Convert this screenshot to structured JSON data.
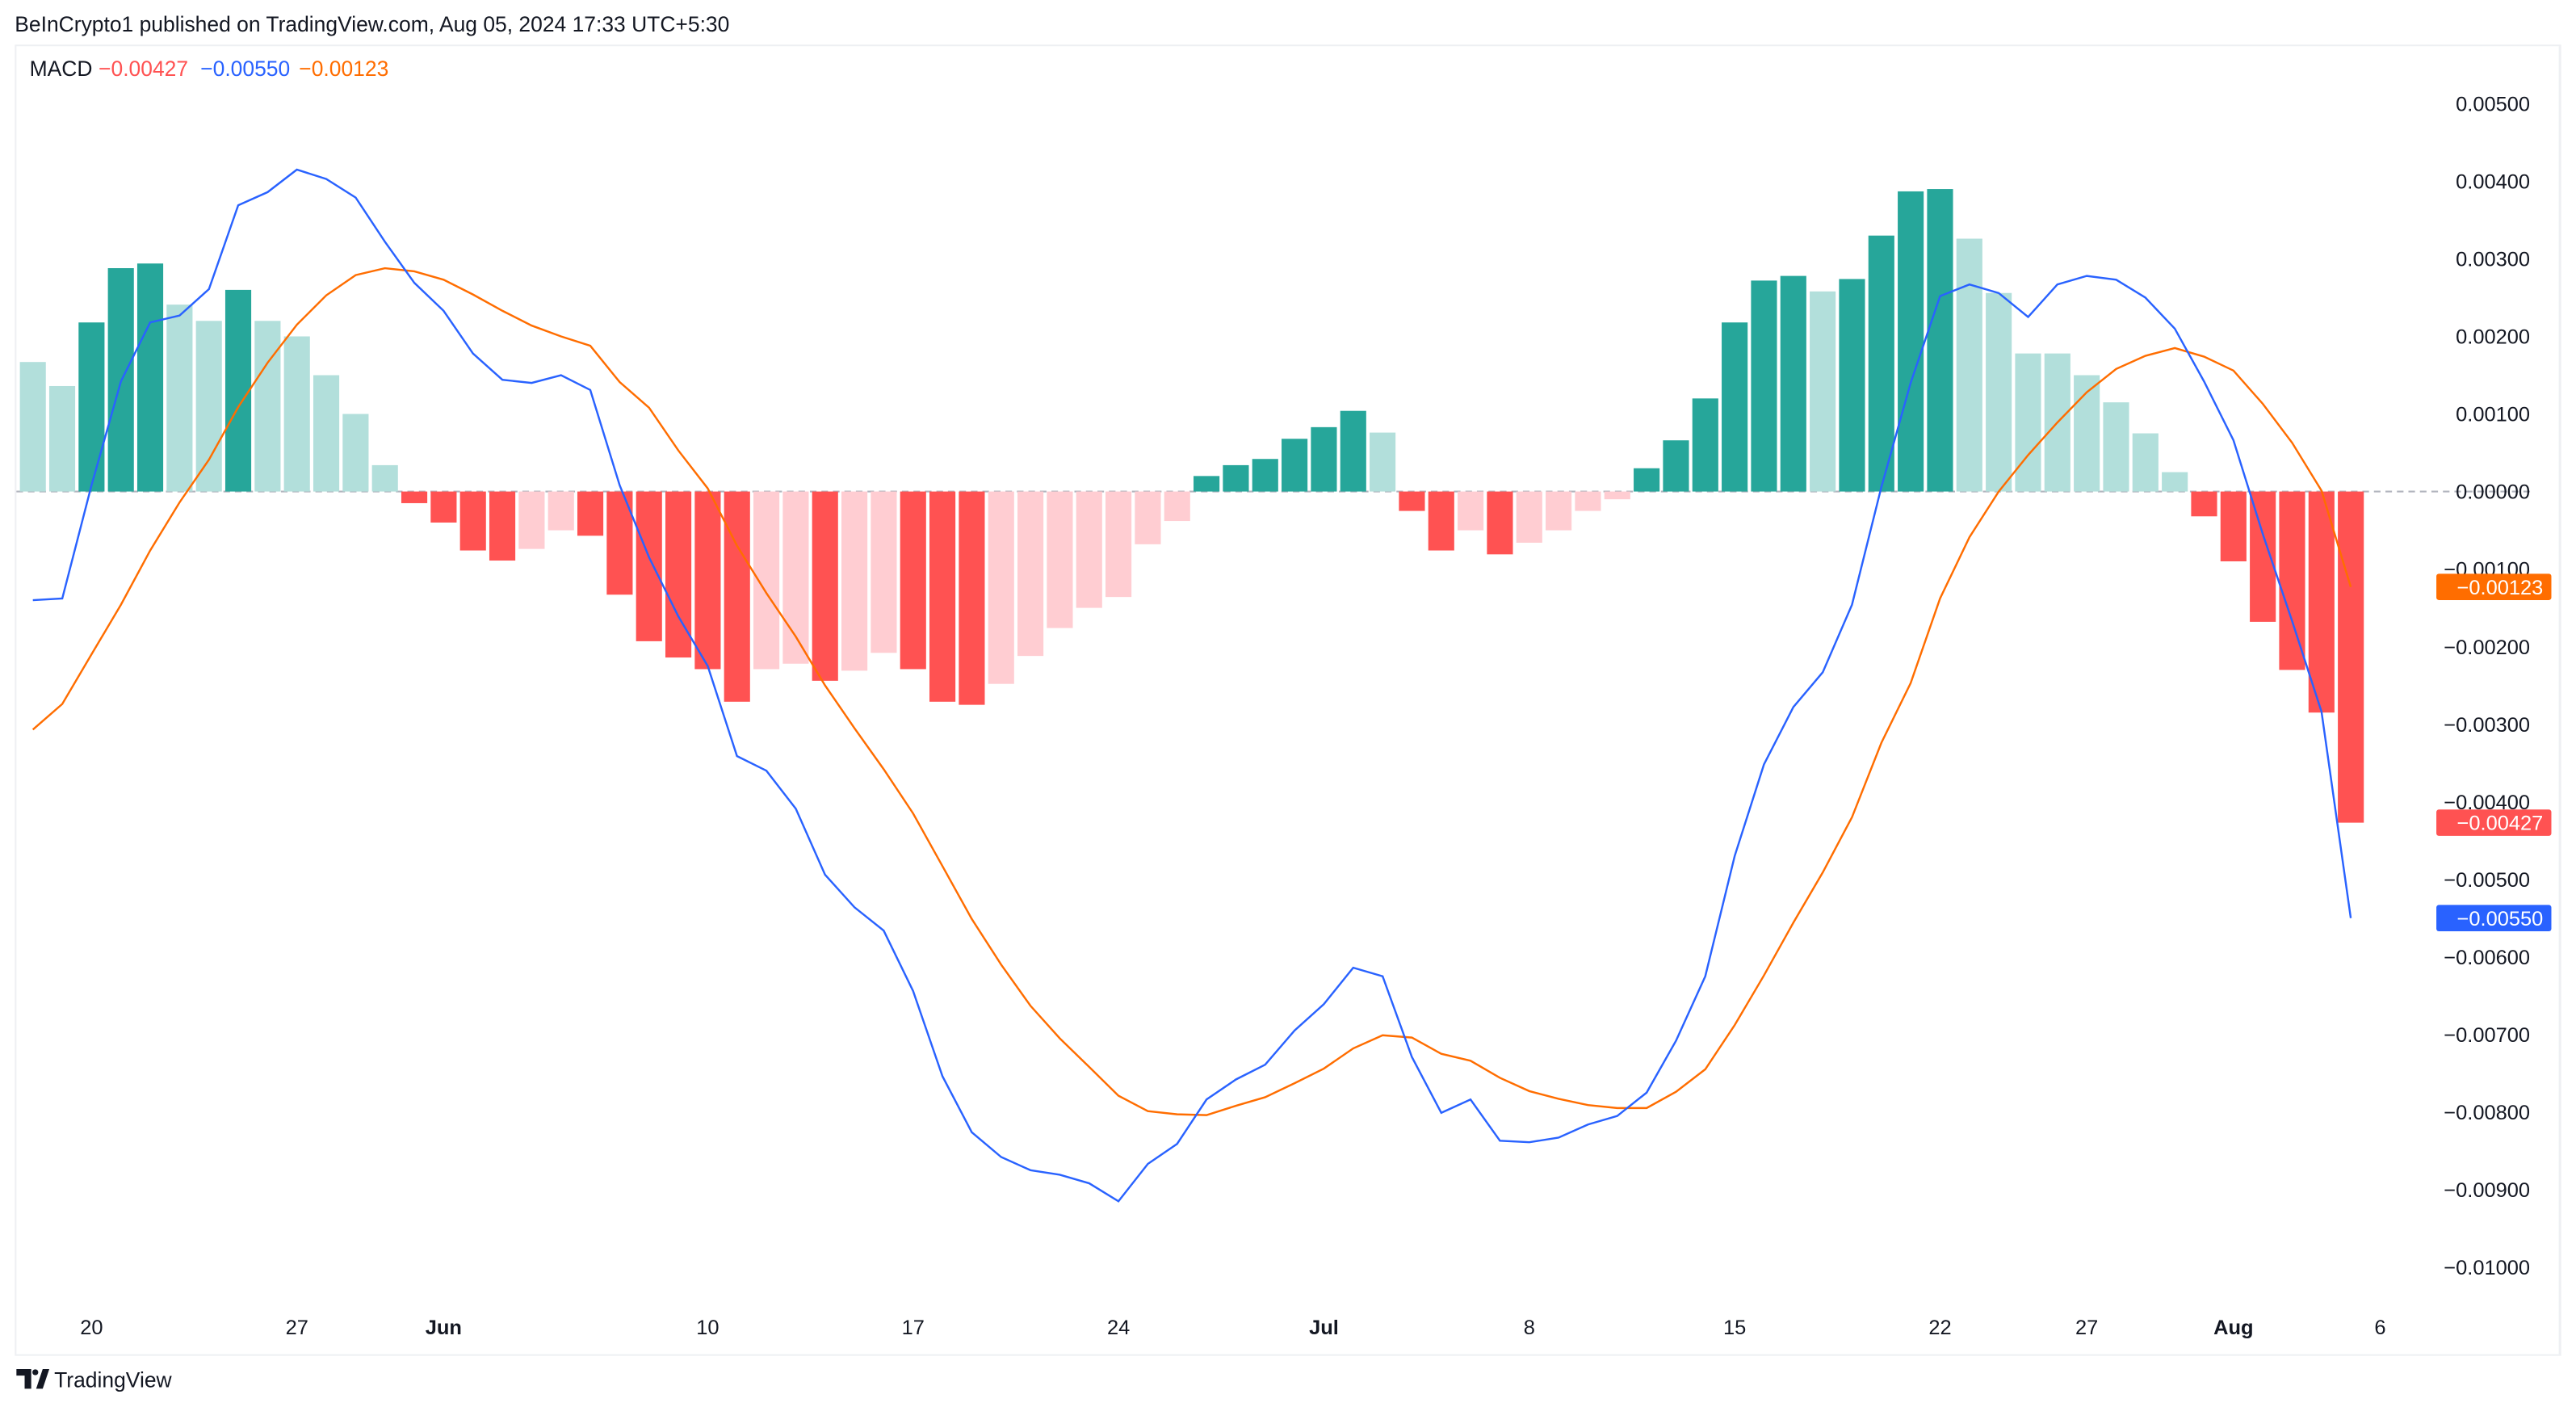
{
  "header": {
    "published": "BeInCrypto1 published on TradingView.com, Aug 05, 2024 17:33 UTC+5:30"
  },
  "legend": {
    "name": "MACD",
    "hist": "−0.00427",
    "macd": "−0.00550",
    "signal": "−0.00123"
  },
  "badges": {
    "signal": "−0.00123",
    "hist": "−0.00427",
    "macd": "−0.00550"
  },
  "footer": {
    "brand": "TradingView"
  },
  "colors": {
    "up_strong": "#26a69a",
    "up_weak": "#b2dfdb",
    "down_strong": "#ff5252",
    "down_weak": "#ffcdd2",
    "macd": "#2962ff",
    "signal": "#ff6d00"
  },
  "chart_data": {
    "type": "bar",
    "title": "MACD",
    "start_date": "May 18, 2024",
    "ylim": [
      -0.0105,
      0.0055
    ],
    "grid": false,
    "y_ticks": [
      "0.00500",
      "0.00400",
      "0.00300",
      "0.00200",
      "0.00100",
      "0.00000",
      "−0.00100",
      "−0.00200",
      "−0.00300",
      "−0.00400",
      "−0.00500",
      "−0.00600",
      "−0.00700",
      "−0.00800",
      "−0.00900",
      "−0.01000"
    ],
    "y_tick_values": [
      0.005,
      0.004,
      0.003,
      0.002,
      0.001,
      0,
      -0.001,
      -0.002,
      -0.003,
      -0.004,
      -0.005,
      -0.006,
      -0.007,
      -0.008,
      -0.009,
      -0.01
    ],
    "x_ticks": [
      {
        "label": "20",
        "day": 2
      },
      {
        "label": "27",
        "day": 9
      },
      {
        "label": "Jun",
        "day": 14
      },
      {
        "label": "10",
        "day": 23
      },
      {
        "label": "17",
        "day": 30
      },
      {
        "label": "24",
        "day": 37
      },
      {
        "label": "Jul",
        "day": 44
      },
      {
        "label": "8",
        "day": 51
      },
      {
        "label": "15",
        "day": 58
      },
      {
        "label": "22",
        "day": 65
      },
      {
        "label": "27",
        "day": 70
      },
      {
        "label": "Aug",
        "day": 75
      },
      {
        "label": "6",
        "day": 80
      }
    ],
    "series": [
      {
        "name": "Histogram",
        "type": "bar",
        "values": [
          0.00167,
          0.00136,
          0.00218,
          0.00288,
          0.00294,
          0.00241,
          0.0022,
          0.0026,
          0.0022,
          0.002,
          0.0015,
          0.001,
          0.00034,
          -0.00015,
          -0.0004,
          -0.00076,
          -0.00089,
          -0.00074,
          -0.0005,
          -0.00057,
          -0.00133,
          -0.00193,
          -0.00214,
          -0.00229,
          -0.00271,
          -0.00229,
          -0.00222,
          -0.00244,
          -0.00231,
          -0.00208,
          -0.00229,
          -0.00271,
          -0.00275,
          -0.00248,
          -0.00212,
          -0.00176,
          -0.0015,
          -0.00136,
          -0.00068,
          -0.00038,
          0.0002,
          0.00034,
          0.00042,
          0.00068,
          0.00083,
          0.00104,
          0.00076,
          -0.00025,
          -0.00076,
          -0.0005,
          -0.00081,
          -0.00066,
          -0.0005,
          -0.00025,
          -0.0001,
          0.0003,
          0.00066,
          0.0012,
          0.00218,
          0.00272,
          0.00278,
          0.00258,
          0.00274,
          0.0033,
          0.00387,
          0.0039,
          0.00326,
          0.00256,
          0.00178,
          0.00178,
          0.0015,
          0.00115,
          0.00075,
          0.00025,
          -0.00032,
          -0.0009,
          -0.00168,
          -0.0023,
          -0.00285,
          -0.00427
        ]
      },
      {
        "name": "MACD",
        "type": "line",
        "values": [
          -0.0014,
          -0.00138,
          8e-05,
          0.00142,
          0.00218,
          0.00227,
          0.00261,
          0.00369,
          0.00386,
          0.00415,
          0.00403,
          0.00379,
          0.00322,
          0.00269,
          0.00233,
          0.00178,
          0.00144,
          0.0014,
          0.0015,
          0.00131,
          8e-05,
          -0.00085,
          -0.00161,
          -0.00225,
          -0.00341,
          -0.0036,
          -0.00409,
          -0.00494,
          -0.00536,
          -0.00566,
          -0.00644,
          -0.00754,
          -0.00826,
          -0.00858,
          -0.00875,
          -0.00881,
          -0.00892,
          -0.00915,
          -0.00867,
          -0.00841,
          -0.00784,
          -0.00758,
          -0.00739,
          -0.00695,
          -0.00661,
          -0.00614,
          -0.00625,
          -0.00729,
          -0.00801,
          -0.00784,
          -0.00837,
          -0.00839,
          -0.00833,
          -0.00816,
          -0.00805,
          -0.00775,
          -0.00708,
          -0.00625,
          -0.0047,
          -0.00352,
          -0.00278,
          -0.00233,
          -0.00146,
          6e-05,
          0.0014,
          0.00252,
          0.00267,
          0.00256,
          0.00225,
          0.00267,
          0.00278,
          0.00273,
          0.0025,
          0.0021,
          0.00142,
          0.00066,
          -0.00055,
          -0.00167,
          -0.00284,
          -0.0055
        ]
      },
      {
        "name": "Signal",
        "type": "line",
        "values": [
          -0.00307,
          -0.00274,
          -0.0021,
          -0.00146,
          -0.00076,
          -0.00014,
          0.00041,
          0.00109,
          0.00166,
          0.00215,
          0.00253,
          0.00279,
          0.00288,
          0.00284,
          0.00273,
          0.00254,
          0.00233,
          0.00214,
          0.002,
          0.00188,
          0.00141,
          0.00108,
          0.00053,
          4e-05,
          -0.0007,
          -0.00131,
          -0.00187,
          -0.0025,
          -0.00305,
          -0.00358,
          -0.00415,
          -0.00483,
          -0.00551,
          -0.0061,
          -0.00663,
          -0.00705,
          -0.00742,
          -0.00779,
          -0.00799,
          -0.00803,
          -0.00804,
          -0.00792,
          -0.00781,
          -0.00763,
          -0.00744,
          -0.00718,
          -0.00701,
          -0.00704,
          -0.00725,
          -0.00734,
          -0.00756,
          -0.00773,
          -0.00783,
          -0.00791,
          -0.00795,
          -0.00795,
          -0.00774,
          -0.00745,
          -0.00688,
          -0.00624,
          -0.00556,
          -0.00491,
          -0.0042,
          -0.00324,
          -0.00247,
          -0.00138,
          -0.00059,
          0,
          0.00047,
          0.00089,
          0.00128,
          0.00158,
          0.00175,
          0.00185,
          0.00174,
          0.00156,
          0.00113,
          0.00063,
          1e-05,
          -0.00123
        ]
      }
    ]
  }
}
